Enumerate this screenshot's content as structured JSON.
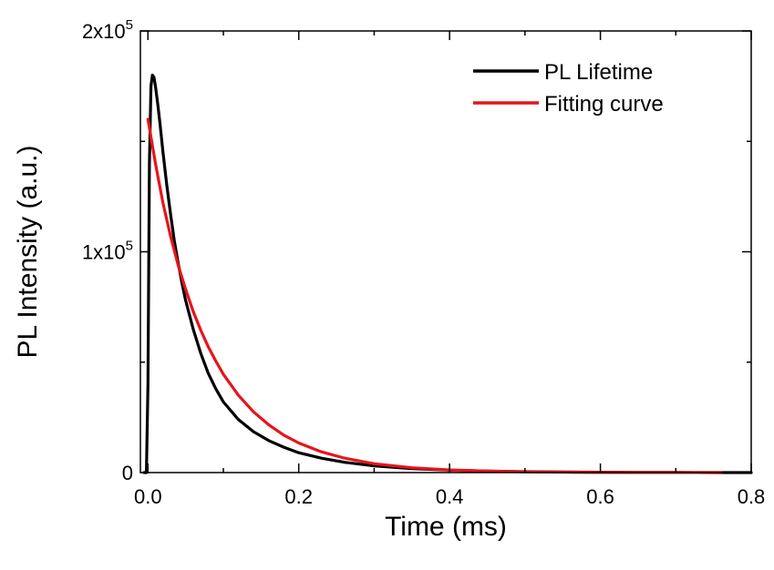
{
  "chart_data": {
    "type": "line",
    "xlabel": "Time (ms)",
    "ylabel": "PL Intensity (a.u.)",
    "xlim": [
      -0.01,
      0.8
    ],
    "ylim": [
      0,
      200000
    ],
    "x_ticks": [
      {
        "value": 0.0,
        "label": "0.0"
      },
      {
        "value": 0.2,
        "label": "0.2"
      },
      {
        "value": 0.4,
        "label": "0.4"
      },
      {
        "value": 0.6,
        "label": "0.6"
      },
      {
        "value": 0.8,
        "label": "0.8"
      }
    ],
    "x_minor_ticks": [
      0.1,
      0.3,
      0.5,
      0.7
    ],
    "y_ticks": [
      {
        "value": 0,
        "mantissa": "0",
        "exponent": ""
      },
      {
        "value": 100000,
        "mantissa": "1x10",
        "exponent": "5"
      },
      {
        "value": 200000,
        "mantissa": "2x10",
        "exponent": "5"
      }
    ],
    "y_minor_ticks": [
      50000,
      150000
    ],
    "grid": false,
    "legend": {
      "position": "top-right",
      "entries": [
        {
          "label": "PL Lifetime",
          "color": "#000000"
        },
        {
          "label": "Fitting curve",
          "color": "#e8141c"
        }
      ]
    },
    "series": [
      {
        "name": "PL Lifetime",
        "color": "#000000",
        "x": [
          -0.005,
          -0.002,
          0.0,
          0.002,
          0.004,
          0.006,
          0.008,
          0.01,
          0.013,
          0.016,
          0.02,
          0.025,
          0.03,
          0.035,
          0.04,
          0.045,
          0.05,
          0.06,
          0.07,
          0.08,
          0.09,
          0.1,
          0.12,
          0.14,
          0.16,
          0.18,
          0.2,
          0.23,
          0.26,
          0.3,
          0.35,
          0.4,
          0.45,
          0.5,
          0.55,
          0.6,
          0.65,
          0.7,
          0.76,
          0.8
        ],
        "y": [
          0,
          0,
          40000,
          140000,
          175000,
          180000,
          179000,
          175000,
          167000,
          158000,
          145000,
          130000,
          117000,
          105000,
          95000,
          86000,
          78000,
          65000,
          54000,
          45000,
          38000,
          32000,
          24000,
          18500,
          14500,
          11500,
          9000,
          6500,
          4700,
          3000,
          1800,
          1100,
          700,
          400,
          250,
          150,
          80,
          40,
          0,
          0
        ]
      },
      {
        "name": "Fitting curve",
        "color": "#e8141c",
        "x": [
          0.0,
          0.01,
          0.02,
          0.03,
          0.04,
          0.05,
          0.06,
          0.07,
          0.08,
          0.09,
          0.1,
          0.12,
          0.14,
          0.16,
          0.18,
          0.2,
          0.23,
          0.26,
          0.3,
          0.35,
          0.4,
          0.45,
          0.5,
          0.55,
          0.6,
          0.65,
          0.7,
          0.76
        ],
        "y": [
          160000,
          140000,
          122000,
          107000,
          94000,
          83000,
          73000,
          64500,
          57000,
          50500,
          44500,
          35000,
          27500,
          21700,
          17000,
          13400,
          9400,
          6600,
          4000,
          2200,
          1200,
          650,
          350,
          190,
          100,
          55,
          30,
          10
        ]
      }
    ]
  }
}
